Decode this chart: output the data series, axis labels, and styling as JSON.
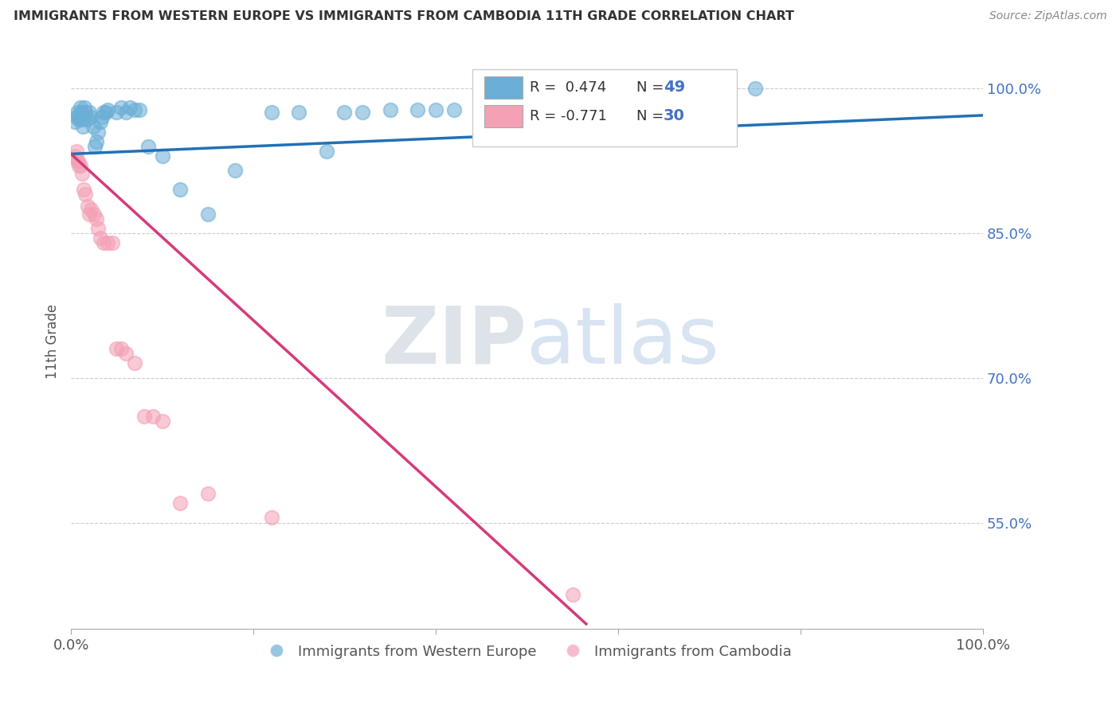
{
  "title": "IMMIGRANTS FROM WESTERN EUROPE VS IMMIGRANTS FROM CAMBODIA 11TH GRADE CORRELATION CHART",
  "source": "Source: ZipAtlas.com",
  "ylabel": "11th Grade",
  "xlim": [
    0.0,
    1.0
  ],
  "ylim": [
    0.44,
    1.035
  ],
  "yticks": [
    0.55,
    0.7,
    0.85,
    1.0
  ],
  "ytick_labels": [
    "55.0%",
    "70.0%",
    "85.0%",
    "100.0%"
  ],
  "blue_R": "R =  0.474",
  "blue_N": "N = 49",
  "pink_R": "R = -0.771",
  "pink_N": "N = 30",
  "blue_color": "#6baed6",
  "pink_color": "#f4a0b5",
  "blue_line_color": "#2171b5",
  "pink_line_color": "#d63a7a",
  "watermark_zip": "ZIP",
  "watermark_atlas": "atlas",
  "blue_scatter_x": [
    0.004,
    0.006,
    0.007,
    0.008,
    0.009,
    0.01,
    0.011,
    0.012,
    0.013,
    0.015,
    0.016,
    0.018,
    0.02,
    0.022,
    0.024,
    0.026,
    0.028,
    0.03,
    0.032,
    0.034,
    0.036,
    0.038,
    0.04,
    0.05,
    0.055,
    0.06,
    0.065,
    0.07,
    0.075,
    0.085,
    0.1,
    0.12,
    0.15,
    0.18,
    0.22,
    0.25,
    0.28,
    0.3,
    0.32,
    0.35,
    0.38,
    0.4,
    0.42,
    0.45,
    0.48,
    0.5,
    0.55,
    0.62,
    0.75
  ],
  "blue_scatter_y": [
    0.965,
    0.97,
    0.975,
    0.972,
    0.968,
    0.98,
    0.975,
    0.968,
    0.96,
    0.98,
    0.975,
    0.968,
    0.975,
    0.97,
    0.96,
    0.94,
    0.945,
    0.955,
    0.965,
    0.97,
    0.975,
    0.975,
    0.978,
    0.975,
    0.98,
    0.975,
    0.98,
    0.978,
    0.978,
    0.94,
    0.93,
    0.895,
    0.87,
    0.915,
    0.975,
    0.975,
    0.935,
    0.975,
    0.975,
    0.978,
    0.978,
    0.978,
    0.978,
    0.978,
    0.978,
    0.978,
    0.978,
    0.975,
    1.0
  ],
  "pink_scatter_x": [
    0.004,
    0.006,
    0.007,
    0.008,
    0.009,
    0.01,
    0.012,
    0.014,
    0.016,
    0.018,
    0.02,
    0.022,
    0.025,
    0.028,
    0.03,
    0.032,
    0.036,
    0.04,
    0.045,
    0.05,
    0.055,
    0.06,
    0.07,
    0.08,
    0.09,
    0.1,
    0.12,
    0.15,
    0.22,
    0.55
  ],
  "pink_scatter_y": [
    0.93,
    0.935,
    0.925,
    0.925,
    0.92,
    0.92,
    0.912,
    0.895,
    0.89,
    0.878,
    0.87,
    0.875,
    0.87,
    0.865,
    0.855,
    0.845,
    0.84,
    0.84,
    0.84,
    0.73,
    0.73,
    0.725,
    0.715,
    0.66,
    0.66,
    0.655,
    0.57,
    0.58,
    0.555,
    0.475
  ],
  "blue_trend_x": [
    0.0,
    1.0
  ],
  "blue_trend_y": [
    0.932,
    0.972
  ],
  "pink_trend_x": [
    0.0,
    0.565
  ],
  "pink_trend_y": [
    0.932,
    0.445
  ]
}
